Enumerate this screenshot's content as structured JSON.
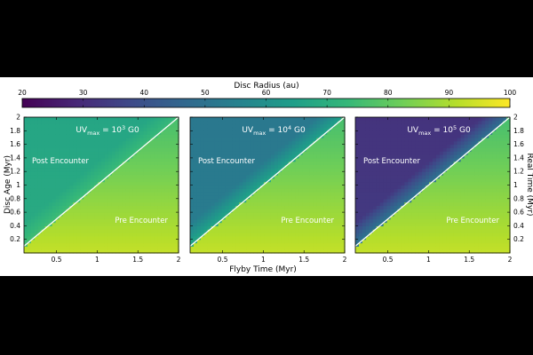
{
  "chart_data": {
    "type": "heatmap",
    "colorbar": {
      "label": "Disc Radius (au)",
      "range": [
        20,
        100
      ],
      "ticks": [
        20,
        30,
        40,
        50,
        60,
        70,
        80,
        90,
        100
      ],
      "colormap": [
        "#440154",
        "#482777",
        "#3e4a89",
        "#31688e",
        "#26828e",
        "#1f9e89",
        "#35b779",
        "#6ece58",
        "#b5de2b",
        "#fde725"
      ]
    },
    "xlabel": "Flyby Time (Myr)",
    "ylabel_left": "Disc Age (Myr)",
    "ylabel_right": "Real Time (Myr)",
    "xlim": [
      0.1,
      2.0
    ],
    "ylim": [
      0.0,
      2.0
    ],
    "xticks": [
      0.5,
      1,
      1.5,
      2
    ],
    "xtick_labels": [
      "0.5",
      "1",
      "1.5",
      "2"
    ],
    "yticks": [
      0.2,
      0.4,
      0.6,
      0.8,
      1,
      1.2,
      1.4,
      1.6,
      1.8,
      2
    ],
    "ytick_labels": [
      "0.2",
      "0.4",
      "0.6",
      "0.8",
      "1",
      "1.2",
      "1.4",
      "1.6",
      "1.8",
      "2"
    ],
    "region_labels": {
      "post": "Post Encounter",
      "pre": "Pre Encounter"
    },
    "panels": [
      {
        "title_prefix": "UV",
        "title_sub": "max",
        "title_mid": " = 10",
        "title_sup": "3",
        "title_suffix": " G0",
        "pre_encounter_radius": {
          "at_age_0": 93,
          "at_age_2": 76
        },
        "post_encounter_radius": {
          "near_boundary": 74,
          "at_old_age_early_flyby": 67
        }
      },
      {
        "title_prefix": "UV",
        "title_sub": "max",
        "title_mid": " = 10",
        "title_sup": "4",
        "title_suffix": " G0",
        "pre_encounter_radius": {
          "at_age_0": 93,
          "at_age_2": 76
        },
        "post_encounter_radius": {
          "near_boundary": 66,
          "at_old_age_early_flyby": 52
        }
      },
      {
        "title_prefix": "UV",
        "title_sub": "max",
        "title_mid": " = 10",
        "title_sup": "5",
        "title_suffix": " G0",
        "pre_encounter_radius": {
          "at_age_0": 93,
          "at_age_2": 76
        },
        "post_encounter_radius": {
          "near_boundary": 50,
          "at_old_age_early_flyby": 32
        }
      }
    ]
  }
}
